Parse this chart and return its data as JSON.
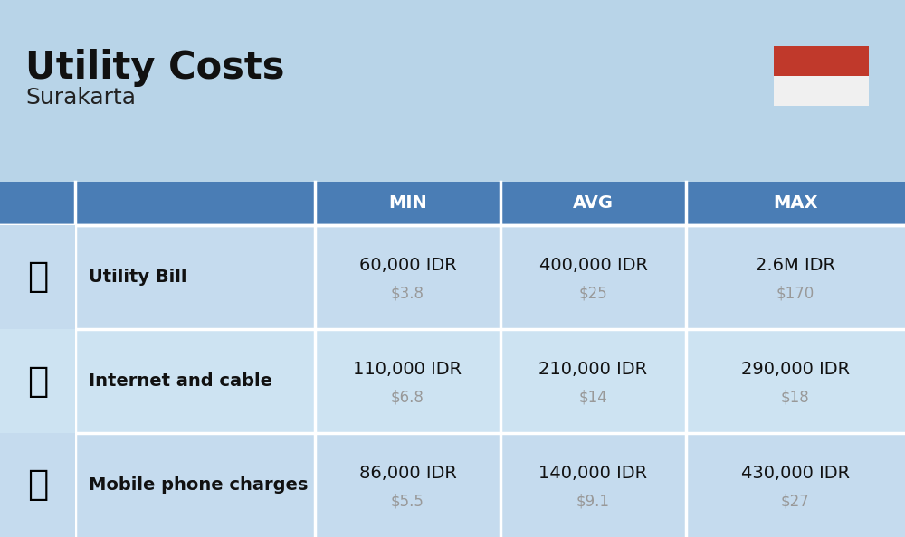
{
  "title": "Utility Costs",
  "subtitle": "Surakarta",
  "background_color": "#b8d4e8",
  "header_bg_color": "#4a7db5",
  "header_text_color": "#ffffff",
  "row_bg_color_odd": "#c5dbee",
  "row_bg_color_even": "#cde3f2",
  "divider_color": "#ffffff",
  "col_header_labels": [
    "MIN",
    "AVG",
    "MAX"
  ],
  "rows": [
    {
      "label": "Utility Bill",
      "min_idr": "60,000 IDR",
      "min_usd": "$3.8",
      "avg_idr": "400,000 IDR",
      "avg_usd": "$25",
      "max_idr": "2.6M IDR",
      "max_usd": "$170"
    },
    {
      "label": "Internet and cable",
      "min_idr": "110,000 IDR",
      "min_usd": "$6.8",
      "avg_idr": "210,000 IDR",
      "avg_usd": "$14",
      "max_idr": "290,000 IDR",
      "max_usd": "$18"
    },
    {
      "label": "Mobile phone charges",
      "min_idr": "86,000 IDR",
      "min_usd": "$5.5",
      "avg_idr": "140,000 IDR",
      "avg_usd": "$9.1",
      "max_idr": "430,000 IDR",
      "max_usd": "$27"
    }
  ],
  "flag_red": "#c0392b",
  "flag_white": "#f0f0f0",
  "title_fontsize": 30,
  "subtitle_fontsize": 18,
  "label_fontsize": 14,
  "value_fontsize": 14,
  "usd_fontsize": 12,
  "header_fontsize": 14
}
